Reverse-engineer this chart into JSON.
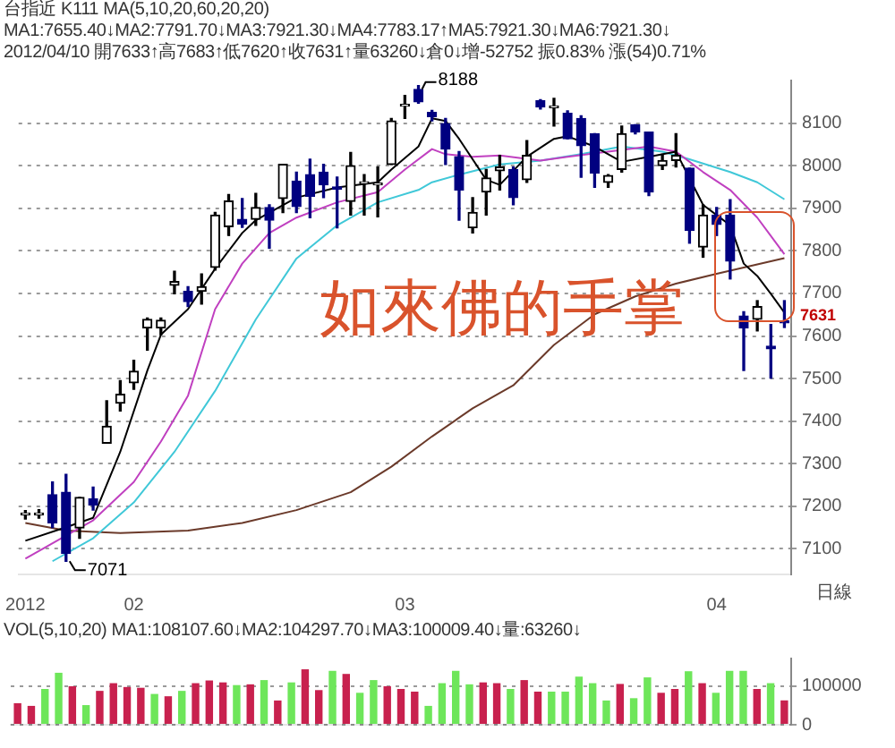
{
  "chart_data": [
    {
      "type": "candlestick",
      "title": "台指近 K111 MA(5,10,20,60,20,20) MA1:7655.40↓MA2:7791.70↓MA3:7921.30↓MA4:7783.17↑MA5:7921.30↓MA6:7921.30↓",
      "subtitle": "2012/04/10 開7633↑高7683↑低7620↑收7631↑量63260↓倉0↓增-52752 振0.83% 漲(54)0.71%",
      "categories": [
        "2012",
        null,
        null,
        null,
        null,
        null,
        null,
        null,
        "02",
        null,
        null,
        null,
        null,
        null,
        null,
        null,
        null,
        null,
        null,
        null,
        null,
        null,
        null,
        null,
        null,
        null,
        null,
        null,
        "03",
        null,
        null,
        null,
        null,
        null,
        null,
        null,
        null,
        null,
        null,
        null,
        null,
        null,
        null,
        null,
        null,
        null,
        null,
        null,
        null,
        null,
        null,
        "04",
        null,
        null,
        null,
        null,
        null
      ],
      "ohlc": [
        [
          7180,
          7190,
          7170,
          7180
        ],
        [
          7180,
          7192,
          7172,
          7182
        ],
        [
          7227,
          7257,
          7150,
          7161
        ],
        [
          7233,
          7275,
          7071,
          7089
        ],
        [
          7149,
          7221,
          7125,
          7221
        ],
        [
          7217,
          7245,
          7191,
          7203
        ],
        [
          7348,
          7448,
          7348,
          7388
        ],
        [
          7442,
          7495,
          7424,
          7463
        ],
        [
          7490,
          7543,
          7475,
          7517
        ],
        [
          7619,
          7642,
          7567,
          7639
        ],
        [
          7619,
          7642,
          7603,
          7637
        ],
        [
          7719,
          7752,
          7699,
          7728
        ],
        [
          7705,
          7716,
          7669,
          7681
        ],
        [
          7705,
          7746,
          7675,
          7716
        ],
        [
          7761,
          7890,
          7755,
          7884
        ],
        [
          7857,
          7932,
          7836,
          7917
        ],
        [
          7874,
          7923,
          7855,
          7863
        ],
        [
          7874,
          7935,
          7860,
          7902
        ],
        [
          7902,
          7908,
          7806,
          7872
        ],
        [
          7923,
          8003,
          7890,
          8003
        ],
        [
          7964,
          7985,
          7890,
          7904
        ],
        [
          7979,
          8015,
          7878,
          7928
        ],
        [
          7985,
          8003,
          7925,
          7955
        ],
        [
          7950,
          7973,
          7854,
          7945
        ],
        [
          7916,
          8031,
          7884,
          8000
        ],
        [
          7958,
          7979,
          7884,
          7960
        ],
        [
          7955,
          7997,
          7880,
          7957
        ],
        [
          8003,
          8111,
          8003,
          8105
        ],
        [
          8140,
          8165,
          8111,
          8143
        ],
        [
          8179,
          8188,
          8147,
          8150
        ],
        [
          8125,
          8130,
          8105,
          8115
        ],
        [
          8099,
          8111,
          8003,
          8039
        ],
        [
          8021,
          8033,
          7872,
          7943
        ],
        [
          7854,
          7925,
          7842,
          7890
        ],
        [
          7938,
          7991,
          7884,
          7971
        ],
        [
          7988,
          8024,
          7943,
          7997
        ],
        [
          7991,
          7997,
          7908,
          7925
        ],
        [
          7967,
          8059,
          7961,
          8024
        ],
        [
          8153,
          8155,
          8133,
          8138
        ],
        [
          8136,
          8158,
          8093,
          8140
        ],
        [
          8123,
          8129,
          8063,
          8063
        ],
        [
          8111,
          8117,
          7973,
          8047
        ],
        [
          8075,
          8075,
          7949,
          7983
        ],
        [
          7961,
          7979,
          7949,
          7977
        ],
        [
          7991,
          8093,
          7985,
          8075
        ],
        [
          8096,
          8096,
          8075,
          8079
        ],
        [
          8079,
          8079,
          7930,
          7938
        ],
        [
          8000,
          8027,
          7991,
          8012
        ],
        [
          8012,
          8075,
          7997,
          8024
        ],
        [
          7994,
          7994,
          7818,
          7848
        ],
        [
          7809,
          7908,
          7785,
          7884
        ],
        [
          7884,
          7902,
          7836,
          7862
        ],
        [
          7884,
          7920,
          7734,
          7776
        ],
        [
          7647,
          7657,
          7519,
          7619
        ],
        [
          7639,
          7683,
          7612,
          7669
        ],
        [
          7576,
          7627,
          7501,
          7570
        ],
        [
          7633,
          7683,
          7620,
          7631
        ]
      ],
      "series": [
        {
          "type": "line",
          "color": "#000000",
          "values": [
            7119,
            null,
            null,
            7151,
            null,
            7173,
            null,
            7328,
            null,
            7519,
            7603,
            null,
            7663,
            null,
            7758,
            null,
            7842,
            7872,
            null,
            null,
            7925,
            null,
            null,
            7949,
            null,
            null,
            7961,
            7991,
            null,
            8045,
            8111,
            8105,
            8063,
            null,
            7967,
            7955,
            null,
            8021,
            null,
            8063,
            8069,
            null,
            8045,
            null,
            8009,
            null,
            8021,
            null,
            8033,
            null,
            7908,
            7884,
            7860,
            7770,
            7741,
            7699,
            7655
          ]
        },
        {
          "type": "line",
          "color": "#c040c0",
          "values": [
            7077,
            null,
            null,
            7131,
            null,
            7167,
            null,
            null,
            7257,
            null,
            7352,
            null,
            7460,
            null,
            7663,
            null,
            7770,
            null,
            7842,
            null,
            7878,
            null,
            null,
            7914,
            null,
            null,
            7938,
            null,
            7991,
            null,
            8039,
            8027,
            null,
            8021,
            null,
            8024,
            null,
            null,
            8012,
            null,
            8021,
            null,
            null,
            8033,
            null,
            null,
            8045,
            null,
            8033,
            null,
            7985,
            null,
            7943,
            null,
            7878,
            null,
            7792
          ]
        },
        {
          "type": "line",
          "color": "#40c8d8",
          "values": [
            null,
            null,
            7071,
            null,
            null,
            7125,
            null,
            null,
            7209,
            null,
            null,
            7328,
            null,
            null,
            7471,
            null,
            null,
            7639,
            null,
            null,
            7782,
            null,
            null,
            7860,
            null,
            null,
            7914,
            null,
            null,
            7943,
            7961,
            null,
            7979,
            null,
            null,
            8003,
            null,
            null,
            8012,
            null,
            null,
            8027,
            null,
            null,
            8045,
            null,
            null,
            8033,
            null,
            8015,
            null,
            null,
            7985,
            null,
            7961,
            null,
            7921
          ]
        },
        {
          "type": "line",
          "color": "#6b3a2a",
          "values": [
            7161,
            null,
            null,
            7143,
            null,
            null,
            null,
            7137,
            null,
            null,
            null,
            null,
            7143,
            null,
            null,
            null,
            7161,
            null,
            null,
            null,
            7191,
            null,
            null,
            null,
            7233,
            null,
            null,
            7293,
            null,
            null,
            7364,
            null,
            null,
            7430,
            null,
            null,
            7484,
            null,
            null,
            7579,
            null,
            null,
            7651,
            null,
            null,
            7693,
            null,
            null,
            7723,
            null,
            null,
            7746,
            null,
            null,
            7768,
            null,
            7783
          ]
        }
      ],
      "ylim": [
        7040,
        8200
      ],
      "yticks": [
        7100,
        7200,
        7300,
        7400,
        7500,
        7600,
        7700,
        7800,
        7900,
        8000,
        8100
      ],
      "grid": "y",
      "legend": false,
      "marker": "none",
      "annotations": [
        "如來佛的手掌",
        "8188",
        "7071",
        "7631",
        "日線"
      ]
    },
    {
      "type": "bar",
      "title": "VOL(5,10,20) MA1:108107.60↓MA2:104297.70↓MA3:100009.40↓量:63260↓",
      "categories": [
        null,
        null,
        null,
        null,
        null,
        null,
        null,
        null,
        null,
        null,
        null,
        null,
        null,
        null,
        null,
        null,
        null,
        null,
        null,
        null,
        null,
        null,
        null,
        null,
        null,
        null,
        null,
        null,
        null,
        null,
        null,
        null,
        null,
        null,
        null,
        null,
        null,
        null,
        null,
        null,
        null,
        null,
        null,
        null,
        null,
        null,
        null,
        null,
        null,
        null,
        null,
        null,
        null,
        null,
        null,
        null,
        null
      ],
      "values": [
        56000,
        49000,
        93000,
        135000,
        100000,
        51000,
        88000,
        108000,
        98000,
        96000,
        80000,
        74000,
        88000,
        108000,
        115000,
        110000,
        103000,
        105000,
        116000,
        63000,
        110000,
        144000,
        90000,
        140000,
        132000,
        83000,
        116000,
        100000,
        93000,
        86000,
        49000,
        108000,
        140000,
        105000,
        110000,
        108000,
        93000,
        116000,
        86000,
        86000,
        86000,
        125000,
        108000,
        63000,
        106000,
        69000,
        123000,
        83000,
        93000,
        139000,
        108000,
        83000,
        140000,
        140000,
        93000,
        108000,
        63260
      ],
      "colors": [
        "#c8214e",
        "#c8214e",
        "#6ee65a",
        "#6ee65a",
        "#c8214e",
        "#6ee65a",
        "#c8214e",
        "#c8214e",
        "#c8214e",
        "#c8214e",
        "#6ee65a",
        "#c8214e",
        "#6ee65a",
        "#c8214e",
        "#c8214e",
        "#c8214e",
        "#6ee65a",
        "#c8214e",
        "#6ee65a",
        "#c8214e",
        "#6ee65a",
        "#c8214e",
        "#c8214e",
        "#6ee65a",
        "#c8214e",
        "#6ee65a",
        "#6ee65a",
        "#c8214e",
        "#c8214e",
        "#c8214e",
        "#6ee65a",
        "#6ee65a",
        "#6ee65a",
        "#6ee65a",
        "#c8214e",
        "#c8214e",
        "#6ee65a",
        "#c8214e",
        "#c8214e",
        "#6ee65a",
        "#6ee65a",
        "#6ee65a",
        "#6ee65a",
        "#6ee65a",
        "#c8214e",
        "#6ee65a",
        "#6ee65a",
        "#c8214e",
        "#c8214e",
        "#6ee65a",
        "#c8214e",
        "#6ee65a",
        "#6ee65a",
        "#6ee65a",
        "#c8214e",
        "#6ee65a",
        "#c8214e"
      ],
      "ylim": [
        0,
        172000
      ],
      "yticks": [
        0,
        100000
      ],
      "grid": "y",
      "legend": false,
      "tick_labels": "y"
    }
  ]
}
